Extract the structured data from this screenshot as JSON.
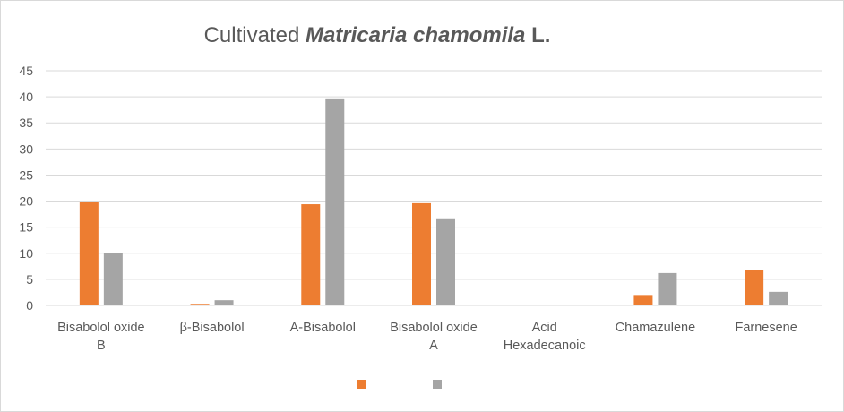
{
  "chart_data": {
    "type": "bar",
    "title": {
      "prefix": "Cultivated ",
      "emphasis": "Matricaria chamomila",
      "suffix": " L."
    },
    "xlabel": "",
    "ylabel": "",
    "ylim": [
      0,
      45
    ],
    "yticks": [
      "0",
      "5",
      "10",
      "15",
      "20",
      "25",
      "30",
      "35",
      "40",
      "45"
    ],
    "grid": true,
    "legend_position": "bottom",
    "categories": [
      [
        "Bisabolol oxide",
        "B"
      ],
      [
        "β-Bisabolol"
      ],
      [
        "A-Bisabolol"
      ],
      [
        "Bisabolol oxide",
        "A"
      ],
      [
        "Acid",
        "Hexadecanoic"
      ],
      [
        "Chamazulene"
      ],
      [
        "Farnesene"
      ]
    ],
    "series": [
      {
        "color": "#ed7d31",
        "values": [
          19.8,
          0.3,
          19.4,
          19.6,
          0,
          2.0,
          6.7
        ]
      },
      {
        "color": "#a5a5a5",
        "values": [
          10.1,
          1.0,
          39.7,
          16.7,
          0,
          6.2,
          2.6
        ]
      }
    ]
  }
}
